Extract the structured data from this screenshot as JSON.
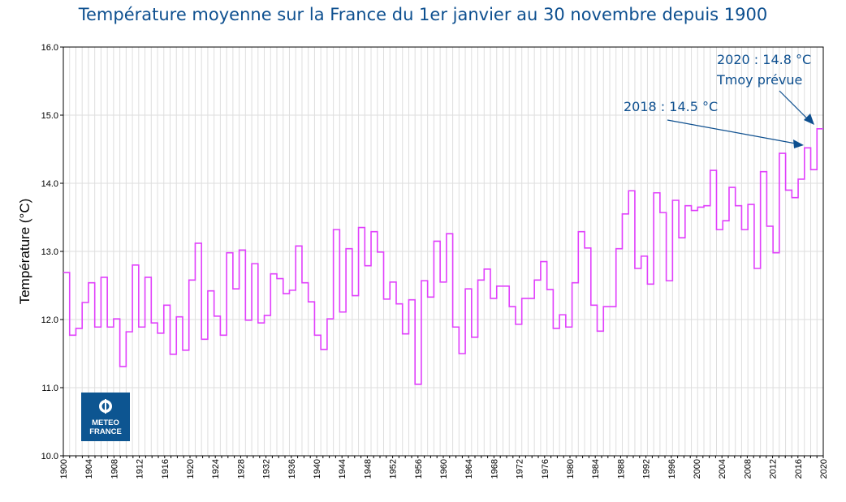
{
  "chart_data": {
    "type": "line",
    "step": true,
    "title": "Température moyenne sur la France du 1er janvier au 30 novembre depuis 1900",
    "xlabel": "",
    "ylabel": "Température (°C)",
    "ylim": [
      10.0,
      16.0
    ],
    "yticks": [
      "10.0",
      "11.0",
      "12.0",
      "13.0",
      "14.0",
      "15.0",
      "16.0"
    ],
    "xtick_step": 4,
    "x_start": 1900,
    "grid": true,
    "series_color": "#e040fb",
    "values": [
      12.69,
      11.77,
      11.87,
      12.25,
      12.54,
      11.89,
      12.62,
      11.89,
      12.01,
      11.31,
      11.82,
      12.8,
      11.89,
      12.62,
      11.95,
      11.8,
      12.21,
      11.49,
      12.04,
      11.55,
      12.58,
      13.12,
      11.71,
      12.42,
      12.05,
      11.77,
      12.98,
      12.45,
      13.02,
      11.99,
      12.82,
      11.95,
      12.06,
      12.67,
      12.6,
      12.38,
      12.43,
      13.08,
      12.54,
      12.26,
      11.77,
      11.56,
      12.01,
      13.32,
      12.11,
      13.04,
      12.35,
      13.35,
      12.79,
      13.29,
      12.99,
      12.3,
      12.55,
      12.23,
      11.79,
      12.29,
      11.05,
      12.57,
      12.33,
      13.15,
      12.55,
      13.26,
      11.89,
      11.5,
      12.45,
      11.74,
      12.58,
      12.74,
      12.31,
      12.49,
      12.49,
      12.19,
      11.93,
      12.31,
      12.31,
      12.58,
      12.85,
      12.44,
      11.87,
      12.07,
      11.89,
      12.54,
      13.29,
      13.05,
      12.21,
      11.83,
      12.19,
      12.19,
      13.04,
      13.55,
      13.89,
      12.75,
      12.93,
      12.52,
      13.86,
      13.57,
      12.57,
      13.75,
      13.2,
      13.67,
      13.6,
      13.65,
      13.67,
      14.19,
      13.32,
      13.45,
      13.94,
      13.67,
      13.32,
      13.69,
      12.75,
      14.17,
      13.37,
      12.98,
      14.44,
      13.9,
      13.79,
      14.06,
      14.52,
      14.2,
      14.8
    ],
    "annotations": [
      {
        "text": "2018 : 14.5 °C",
        "year": 2018,
        "value": 14.5
      },
      {
        "text": "2020 : 14.8 °C",
        "text2": "Tmoy prévue",
        "year": 2020,
        "value": 14.8
      }
    ]
  },
  "logo": {
    "line1": "METEO",
    "line2": "FRANCE"
  },
  "colors": {
    "title": "#0d4f8f",
    "logo_bg": "#0d5591"
  }
}
